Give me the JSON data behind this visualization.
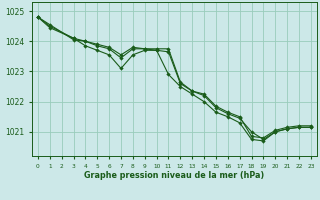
{
  "xlabel": "Graphe pression niveau de la mer (hPa)",
  "ylim": [
    1020.2,
    1025.3
  ],
  "xlim": [
    -0.5,
    23.5
  ],
  "yticks": [
    1021,
    1022,
    1023,
    1024,
    1025
  ],
  "xticks": [
    0,
    1,
    2,
    3,
    4,
    5,
    6,
    7,
    8,
    9,
    10,
    11,
    12,
    13,
    14,
    15,
    16,
    17,
    18,
    19,
    20,
    21,
    22,
    23
  ],
  "bg_color": "#cce8e8",
  "grid_color": "#99ccbb",
  "line_color": "#1a5c1a",
  "line1_x": [
    0,
    1,
    3,
    4,
    5,
    6,
    7,
    8,
    9,
    10,
    11,
    12,
    13,
    14,
    15,
    16,
    17,
    18,
    19,
    20,
    21,
    22,
    23
  ],
  "line1_y": [
    1024.8,
    1024.55,
    1024.05,
    1024.0,
    1023.85,
    1023.75,
    1023.45,
    1023.75,
    1023.75,
    1023.75,
    1023.75,
    1022.65,
    1022.35,
    1022.25,
    1021.85,
    1021.65,
    1021.5,
    1020.85,
    1020.8,
    1021.05,
    1021.15,
    1021.2,
    1021.2
  ],
  "line2_x": [
    0,
    1,
    3,
    4,
    5,
    6,
    7,
    8,
    9,
    10,
    11,
    12,
    13,
    14,
    15,
    16,
    17,
    18,
    19,
    20,
    21,
    22,
    23
  ],
  "line2_y": [
    1024.8,
    1024.5,
    1024.1,
    1023.85,
    1023.7,
    1023.55,
    1023.1,
    1023.55,
    1023.7,
    1023.7,
    1022.9,
    1022.5,
    1022.25,
    1022.0,
    1021.65,
    1021.5,
    1021.3,
    1020.75,
    1020.7,
    1021.0,
    1021.1,
    1021.15,
    1021.15
  ],
  "line3_x": [
    0,
    1,
    3,
    4,
    5,
    6,
    7,
    8,
    9,
    10,
    11,
    12,
    13,
    14,
    15,
    16,
    17,
    18,
    19,
    20,
    21,
    22,
    23
  ],
  "line3_y": [
    1024.8,
    1024.45,
    1024.1,
    1024.0,
    1023.9,
    1023.8,
    1023.55,
    1023.8,
    1023.75,
    1023.7,
    1023.65,
    1022.6,
    1022.35,
    1022.2,
    1021.8,
    1021.6,
    1021.45,
    1021.0,
    1020.75,
    1021.0,
    1021.1,
    1021.15,
    1021.15
  ]
}
